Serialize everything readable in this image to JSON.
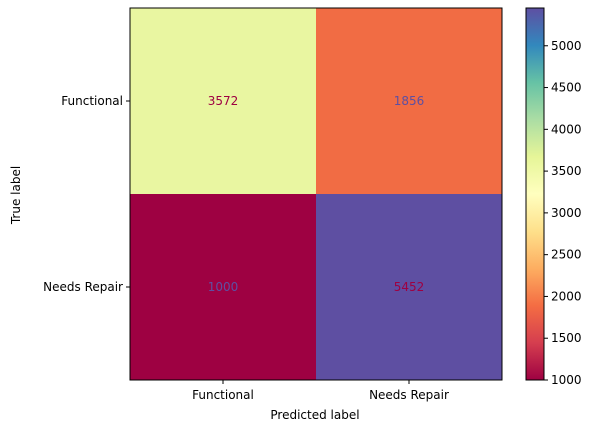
{
  "chart_data": {
    "type": "heatmap",
    "title": "",
    "xlabel": "Predicted label",
    "ylabel": "True label",
    "x_categories": [
      "Functional",
      "Needs Repair"
    ],
    "y_categories": [
      "Functional",
      "Needs Repair"
    ],
    "values": [
      [
        3572,
        1856
      ],
      [
        1000,
        5452
      ]
    ],
    "colormap": "Spectral",
    "colorbar": {
      "range": [
        1000,
        5452
      ],
      "ticks": [
        1000,
        1500,
        2000,
        2500,
        3000,
        3500,
        4000,
        4500,
        5000
      ]
    },
    "cell_colors": [
      [
        "#e9f6a1",
        "#f16c44"
      ],
      [
        "#9e0142",
        "#5e4fa2"
      ]
    ],
    "text_colors": [
      [
        "#9e0142",
        "#5e4fa2"
      ],
      [
        "#5e4fa2",
        "#9e0142"
      ]
    ]
  }
}
